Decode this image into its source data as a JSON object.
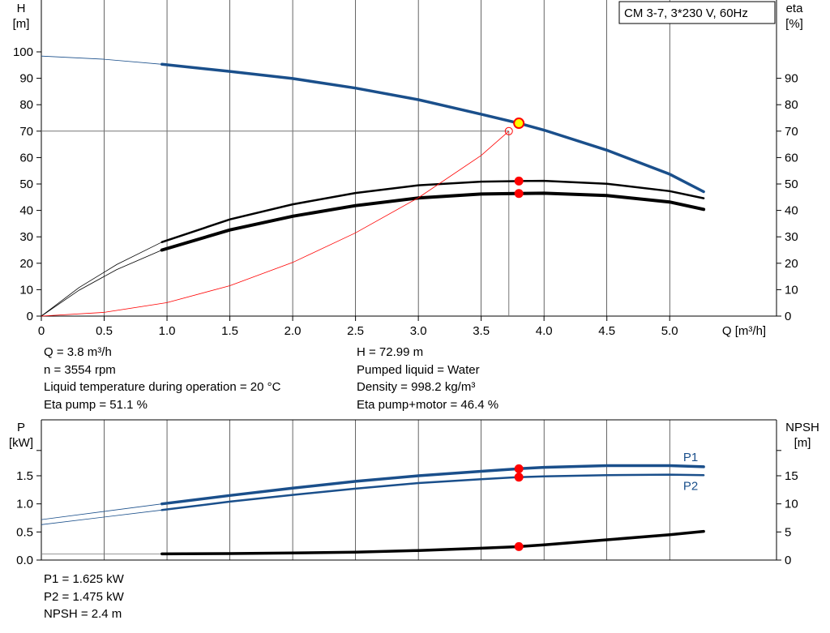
{
  "colors": {
    "blue": "#1a4f8b",
    "black": "#000000",
    "red": "#ff0000",
    "grid": "#000000",
    "op_fill": "#ffff00"
  },
  "chart_data": [
    {
      "type": "line",
      "name": "performance",
      "title_box": "CM 3-7, 3*230 V, 60Hz",
      "ylabel_left": [
        "H",
        "[m]"
      ],
      "ylabel_right": [
        "eta",
        "[%]"
      ],
      "xlabel": "Q [m³/h]",
      "xlim": [
        0,
        5.85
      ],
      "ylim": [
        0,
        100
      ],
      "x_ticks": [
        0,
        0.5,
        1.0,
        1.5,
        2.0,
        2.5,
        3.0,
        3.5,
        4.0,
        4.5,
        5.0
      ],
      "x_tick_labels": [
        "0",
        "0.5",
        "1.0",
        "1.5",
        "2.0",
        "2.5",
        "3.0",
        "3.5",
        "4.0",
        "4.5",
        "5.0"
      ],
      "y_ticks_left": [
        0,
        10,
        20,
        30,
        40,
        50,
        60,
        70,
        80,
        90,
        100
      ],
      "y_tick_labels_left": [
        "0",
        "10",
        "20",
        "30",
        "40",
        "50",
        "60",
        "70",
        "80",
        "90",
        "100"
      ],
      "y_ticks_right": [
        0,
        10,
        20,
        30,
        40,
        50,
        60,
        70,
        80,
        90
      ],
      "y_tick_labels_right": [
        "0",
        "10",
        "20",
        "30",
        "40",
        "50",
        "60",
        "70",
        "80",
        "90"
      ],
      "grid_x": [
        0.5,
        1.0,
        1.5,
        2.0,
        2.5,
        3.0,
        3.5,
        4.0,
        4.5,
        5.0
      ],
      "duty_point": {
        "q": 3.72,
        "h": 70
      },
      "series": [
        {
          "key": "H",
          "color": "blue",
          "thin_x": [
            0,
            0.5,
            0.96
          ],
          "thin_y": [
            98.4,
            97.2,
            95.3
          ],
          "x": [
            0.96,
            1.5,
            2.0,
            2.5,
            3.0,
            3.5,
            3.8,
            4.0,
            4.5,
            5.0,
            5.27
          ],
          "y": [
            95.3,
            92.6,
            89.9,
            86.3,
            81.9,
            76.4,
            72.99,
            70.4,
            62.8,
            53.7,
            47.1
          ]
        },
        {
          "key": "eta_pump",
          "color": "black",
          "thin_x": [
            0,
            0.3,
            0.6,
            0.96
          ],
          "thin_y": [
            0,
            10.8,
            19.5,
            28.0
          ],
          "x": [
            0.96,
            1.5,
            2.0,
            2.5,
            3.0,
            3.5,
            3.8,
            4.0,
            4.5,
            5.0,
            5.27
          ],
          "y": [
            28.0,
            36.6,
            42.3,
            46.6,
            49.5,
            50.9,
            51.1,
            51.2,
            50.1,
            47.3,
            44.6
          ]
        },
        {
          "key": "eta_pump_motor",
          "color": "black",
          "thin_x": [
            0,
            0.3,
            0.6,
            0.96
          ],
          "thin_y": [
            0,
            9.8,
            17.6,
            25.0
          ],
          "x": [
            0.96,
            1.5,
            2.0,
            2.5,
            3.0,
            3.5,
            3.8,
            4.0,
            4.5,
            5.0,
            5.27
          ],
          "y": [
            25.0,
            32.6,
            37.8,
            41.8,
            44.7,
            46.2,
            46.4,
            46.5,
            45.6,
            43.2,
            40.4
          ]
        },
        {
          "key": "system",
          "color": "red",
          "x": [
            0,
            0.5,
            1.0,
            1.5,
            2.0,
            2.5,
            3.0,
            3.5,
            3.72
          ],
          "y": [
            0,
            1.4,
            5.1,
            11.5,
            20.3,
            31.5,
            44.8,
            60.8,
            70
          ]
        }
      ],
      "op_points": [
        {
          "q": 3.8,
          "v": 72.99,
          "style": "yellow"
        },
        {
          "q": 3.8,
          "v": 51.1,
          "style": "red"
        },
        {
          "q": 3.8,
          "v": 46.4,
          "style": "red"
        }
      ]
    },
    {
      "type": "line",
      "name": "power",
      "ylabel_left": [
        "P",
        "[kW]"
      ],
      "ylabel_right": [
        "NPSH",
        "[m]"
      ],
      "xlim": [
        0,
        5.85
      ],
      "ylim": [
        0,
        2.0
      ],
      "ylim_right": [
        0,
        20
      ],
      "y_ticks_left": [
        0,
        0.5,
        1.0,
        1.5
      ],
      "y_tick_labels_left": [
        "0.0",
        "0.5",
        "1.0",
        "1.5"
      ],
      "y_ticks_right": [
        0,
        5,
        10,
        15
      ],
      "y_tick_labels_right": [
        "0",
        "5",
        "10",
        "15"
      ],
      "grid_x": [
        0.5,
        1.0,
        1.5,
        2.0,
        2.5,
        3.0,
        3.5,
        4.0,
        4.5,
        5.0
      ],
      "series": [
        {
          "key": "P1",
          "label": "P1",
          "color": "blue",
          "thin_x": [
            0,
            0.96
          ],
          "thin_y": [
            0.72,
            1.0
          ],
          "x": [
            0.96,
            1.5,
            2.0,
            2.5,
            3.0,
            3.5,
            3.8,
            4.0,
            4.5,
            5.0,
            5.27
          ],
          "y": [
            1.0,
            1.15,
            1.28,
            1.4,
            1.5,
            1.58,
            1.625,
            1.65,
            1.68,
            1.68,
            1.66
          ]
        },
        {
          "key": "P2",
          "label": "P2",
          "color": "blue",
          "thin_x": [
            0,
            0.96
          ],
          "thin_y": [
            0.63,
            0.89
          ],
          "x": [
            0.96,
            1.5,
            2.0,
            2.5,
            3.0,
            3.5,
            3.8,
            4.0,
            4.5,
            5.0,
            5.27
          ],
          "y": [
            0.89,
            1.04,
            1.16,
            1.27,
            1.37,
            1.44,
            1.475,
            1.49,
            1.51,
            1.52,
            1.51
          ]
        },
        {
          "key": "NPSH",
          "color": "black",
          "axis": "right",
          "thin_x": [
            0,
            0.96
          ],
          "thin_y": [
            1.1,
            1.1
          ],
          "x": [
            0.96,
            1.5,
            2.0,
            2.5,
            3.0,
            3.5,
            3.8,
            4.0,
            4.5,
            5.0,
            5.27
          ],
          "y": [
            1.1,
            1.15,
            1.25,
            1.4,
            1.7,
            2.1,
            2.4,
            2.7,
            3.6,
            4.5,
            5.1
          ]
        }
      ],
      "op_points": [
        {
          "q": 3.8,
          "v": 1.625,
          "style": "red"
        },
        {
          "q": 3.8,
          "v": 1.475,
          "style": "red"
        },
        {
          "q": 3.8,
          "v": 2.4,
          "style": "red",
          "axis": "right"
        }
      ]
    }
  ],
  "info_top": {
    "left": [
      "Q = 3.8 m³/h",
      "n = 3554 rpm",
      "Liquid temperature during operation = 20 °C",
      "Eta pump = 51.1 %"
    ],
    "right": [
      "H = 72.99 m",
      "Pumped liquid = Water",
      "Density = 998.2 kg/m³",
      "Eta pump+motor = 46.4 %"
    ]
  },
  "info_bottom": [
    "P1 = 1.625 kW",
    "P2 = 1.475 kW",
    "NPSH = 2.4 m"
  ]
}
